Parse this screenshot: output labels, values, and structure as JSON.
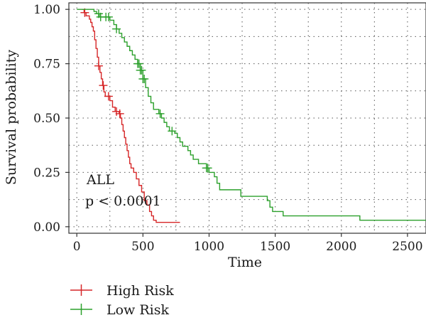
{
  "chart_data": {
    "type": "line",
    "title": "",
    "xlabel": "Time",
    "ylabel": "Survival probability",
    "xlim": [
      -60,
      2640
    ],
    "ylim": [
      -0.03,
      1.03
    ],
    "x_ticks": [
      0,
      500,
      1000,
      1500,
      2000,
      2500
    ],
    "y_ticks": [
      0.0,
      0.25,
      0.5,
      0.75,
      1.0
    ],
    "y_tick_labels": [
      "0.00",
      "0.25",
      "0.50",
      "0.75",
      "1.00"
    ],
    "grid": "dotted",
    "legend_position": "bottom-left",
    "annotations": [
      "ALL",
      "p < 0.0001"
    ],
    "series": [
      {
        "name": "High Risk",
        "color": "#d62728",
        "step_points": [
          [
            40,
            1.0
          ],
          [
            55,
            0.985
          ],
          [
            70,
            0.97
          ],
          [
            95,
            0.955
          ],
          [
            105,
            0.94
          ],
          [
            115,
            0.92
          ],
          [
            125,
            0.9
          ],
          [
            135,
            0.86
          ],
          [
            145,
            0.82
          ],
          [
            155,
            0.78
          ],
          [
            165,
            0.74
          ],
          [
            175,
            0.71
          ],
          [
            185,
            0.68
          ],
          [
            195,
            0.65
          ],
          [
            205,
            0.62
          ],
          [
            215,
            0.6
          ],
          [
            250,
            0.58
          ],
          [
            270,
            0.55
          ],
          [
            290,
            0.53
          ],
          [
            320,
            0.52
          ],
          [
            330,
            0.5
          ],
          [
            340,
            0.47
          ],
          [
            350,
            0.44
          ],
          [
            360,
            0.41
          ],
          [
            370,
            0.38
          ],
          [
            380,
            0.35
          ],
          [
            390,
            0.32
          ],
          [
            400,
            0.29
          ],
          [
            410,
            0.27
          ],
          [
            430,
            0.25
          ],
          [
            450,
            0.22
          ],
          [
            470,
            0.19
          ],
          [
            490,
            0.16
          ],
          [
            510,
            0.12
          ],
          [
            530,
            0.1
          ],
          [
            550,
            0.07
          ],
          [
            565,
            0.05
          ],
          [
            580,
            0.03
          ],
          [
            600,
            0.02
          ],
          [
            780,
            0.02
          ]
        ],
        "censor_x": [
          60,
          165,
          200,
          240,
          300,
          325
        ]
      },
      {
        "name": "Low Risk",
        "color": "#2ca02c",
        "step_points": [
          [
            0,
            1.0
          ],
          [
            100,
            1.0
          ],
          [
            130,
            0.99
          ],
          [
            150,
            0.98
          ],
          [
            170,
            0.965
          ],
          [
            250,
            0.95
          ],
          [
            280,
            0.93
          ],
          [
            300,
            0.91
          ],
          [
            320,
            0.89
          ],
          [
            340,
            0.87
          ],
          [
            360,
            0.85
          ],
          [
            380,
            0.83
          ],
          [
            400,
            0.81
          ],
          [
            420,
            0.79
          ],
          [
            440,
            0.77
          ],
          [
            460,
            0.75
          ],
          [
            480,
            0.72
          ],
          [
            500,
            0.68
          ],
          [
            520,
            0.64
          ],
          [
            540,
            0.6
          ],
          [
            560,
            0.57
          ],
          [
            580,
            0.54
          ],
          [
            620,
            0.52
          ],
          [
            640,
            0.5
          ],
          [
            660,
            0.48
          ],
          [
            680,
            0.46
          ],
          [
            700,
            0.44
          ],
          [
            740,
            0.43
          ],
          [
            760,
            0.41
          ],
          [
            780,
            0.39
          ],
          [
            800,
            0.37
          ],
          [
            840,
            0.35
          ],
          [
            860,
            0.33
          ],
          [
            880,
            0.31
          ],
          [
            920,
            0.29
          ],
          [
            980,
            0.27
          ],
          [
            1000,
            0.25
          ],
          [
            1040,
            0.23
          ],
          [
            1060,
            0.2
          ],
          [
            1080,
            0.17
          ],
          [
            1240,
            0.14
          ],
          [
            1440,
            0.12
          ],
          [
            1460,
            0.09
          ],
          [
            1480,
            0.07
          ],
          [
            1560,
            0.05
          ],
          [
            2140,
            0.03
          ],
          [
            2640,
            0.03
          ]
        ],
        "censor_x": [
          165,
          180,
          220,
          240,
          300,
          460,
          470,
          480,
          490,
          500,
          510,
          630,
          720,
          980,
          990
        ]
      }
    ]
  }
}
